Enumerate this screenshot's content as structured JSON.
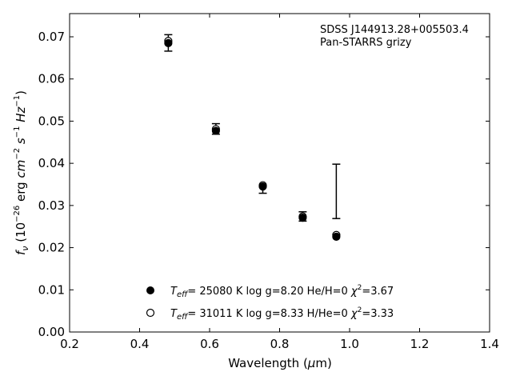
{
  "chart_data": {
    "type": "scatter",
    "xlabel": "Wavelength (μm)",
    "ylabel": "fν (10⁻²⁶ erg cm⁻² s⁻¹ Hz⁻¹)",
    "xlim": [
      0.2,
      1.4
    ],
    "ylim": [
      0.0,
      0.0755
    ],
    "x_ticks": [
      "0.2",
      "0.4",
      "0.6",
      "0.8",
      "1.0",
      "1.2",
      "1.4"
    ],
    "y_ticks": [
      "0.00",
      "0.01",
      "0.02",
      "0.03",
      "0.04",
      "0.05",
      "0.06",
      "0.07"
    ],
    "annotation": [
      "SDSS J144913.28+005503.4",
      "Pan-STARRS grizy"
    ],
    "observed": [
      {
        "x": 0.482,
        "y": 0.0686,
        "yerr_low": 0.0666,
        "yerr_high": 0.0705
      },
      {
        "x": 0.618,
        "y": 0.048,
        "yerr_low": 0.0469,
        "yerr_high": 0.0494
      },
      {
        "x": 0.752,
        "y": 0.0346,
        "yerr_low": 0.0329,
        "yerr_high": 0.0347
      },
      {
        "x": 0.866,
        "y": 0.0272,
        "yerr_low": 0.0263,
        "yerr_high": 0.0285
      },
      {
        "x": 0.962,
        "y": 0.0334,
        "yerr_low": 0.0269,
        "yerr_high": 0.0398
      }
    ],
    "series": [
      {
        "marker": "filled-circle",
        "legend_text": "T_eff= 25080 K  log g=8.20  He/H=0  χ²=3.67",
        "x": [
          0.482,
          0.618,
          0.752,
          0.866,
          0.962
        ],
        "y": [
          0.0685,
          0.0477,
          0.0345,
          0.0271,
          0.0226
        ]
      },
      {
        "marker": "open-circle",
        "legend_text": "T_eff= 31011 K  log g=8.33  H/He=0  χ²=3.33",
        "x": [
          0.482,
          0.618,
          0.752,
          0.866,
          0.962
        ],
        "y": [
          0.069,
          0.0481,
          0.0348,
          0.0274,
          0.023
        ]
      }
    ],
    "legend_position": "lower-center",
    "grid": false
  }
}
